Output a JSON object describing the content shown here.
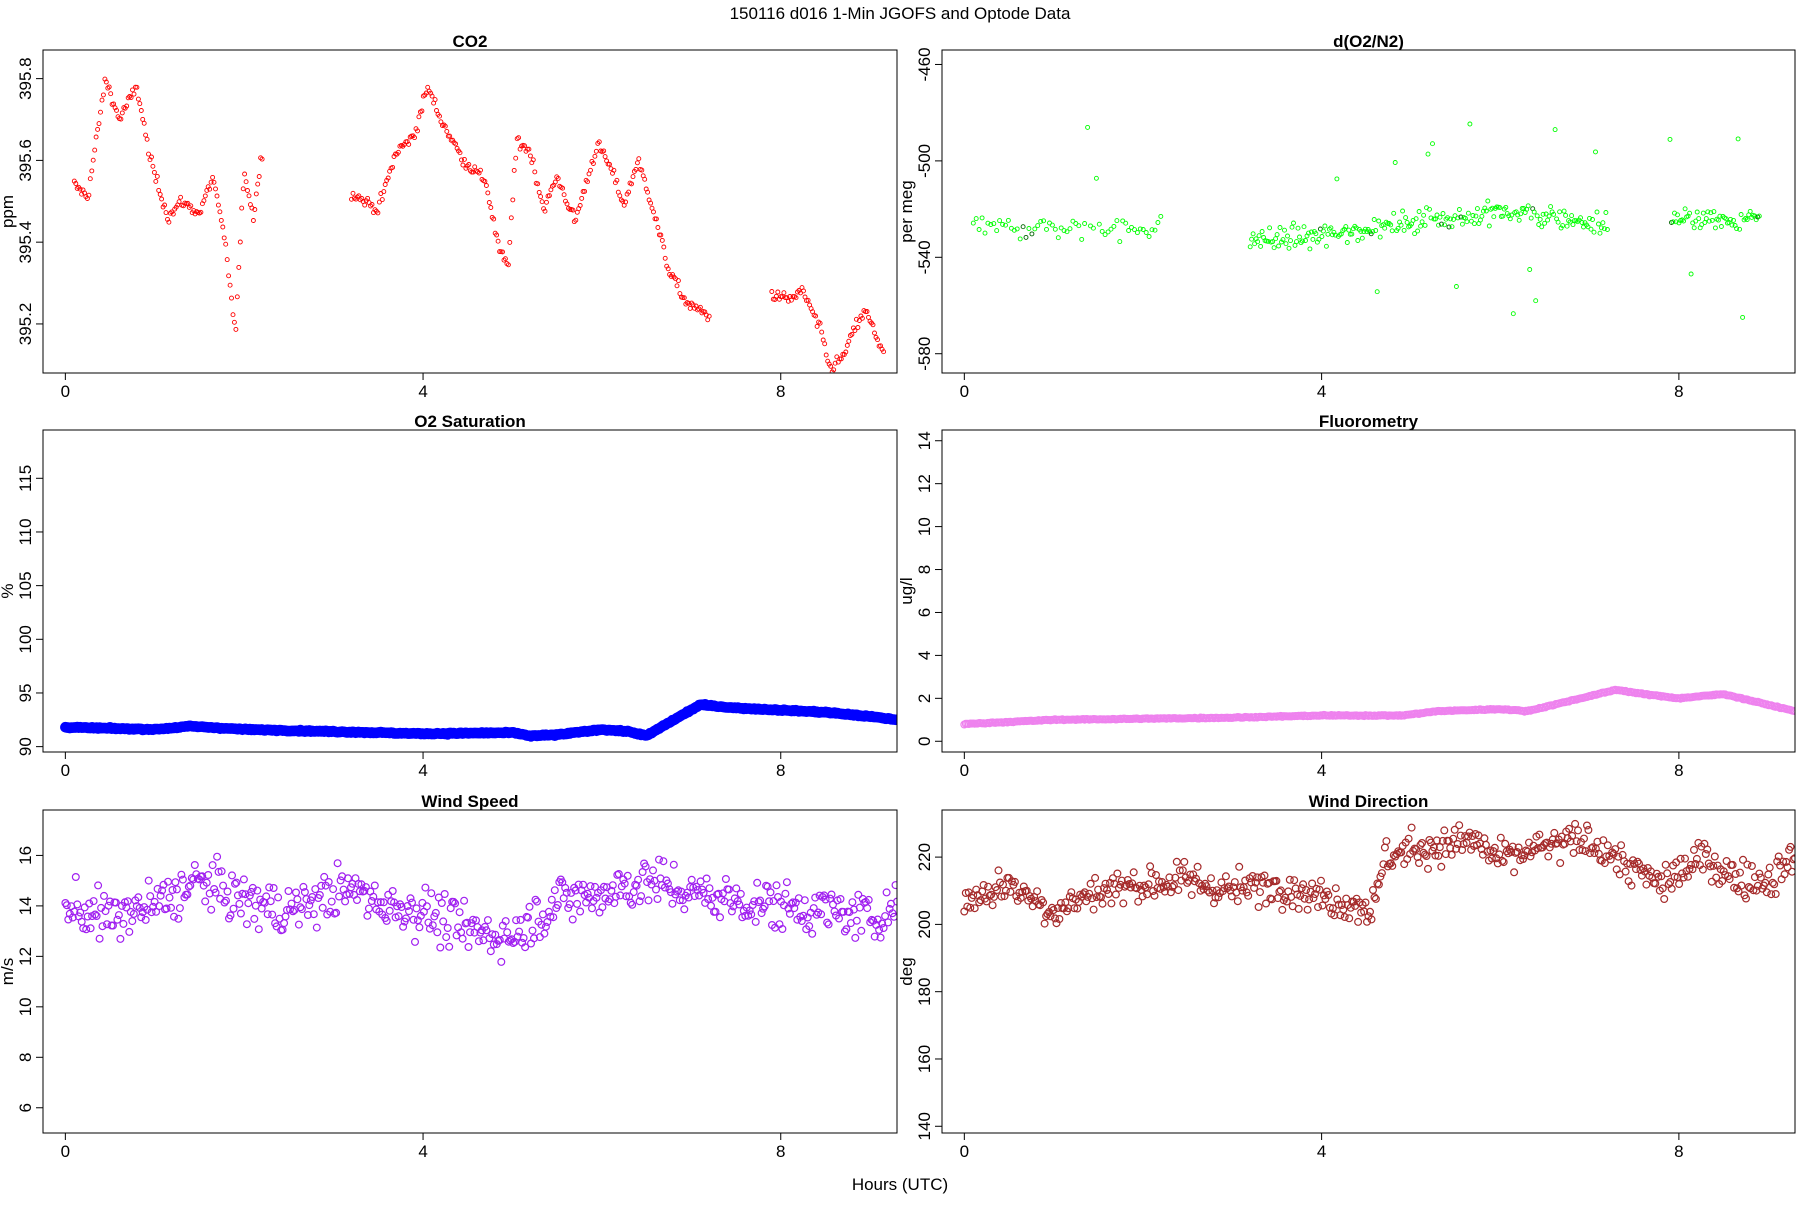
{
  "figure": {
    "title": "150116   d016   1-Min  JGOFS and Optode Data",
    "xlabel": "Hours (UTC)"
  },
  "chart_data": [
    {
      "id": "co2",
      "type": "scatter",
      "title": "CO2",
      "ylabel": "ppm",
      "xlim": [
        -0.25,
        9.3
      ],
      "ylim": [
        395.08,
        395.87
      ],
      "xticks": [
        0,
        4,
        8
      ],
      "yticks": [
        395.2,
        395.4,
        395.6,
        395.8
      ],
      "color": "#ff0000",
      "marker_size": "small",
      "segments": [
        {
          "x_range": [
            0.1,
            2.2
          ],
          "n": 130,
          "anchors": [
            [
              0.1,
              395.54
            ],
            [
              0.25,
              395.51
            ],
            [
              0.45,
              395.8
            ],
            [
              0.6,
              395.7
            ],
            [
              0.8,
              395.78
            ],
            [
              0.95,
              395.6
            ],
            [
              1.15,
              395.46
            ],
            [
              1.3,
              395.5
            ],
            [
              1.5,
              395.47
            ],
            [
              1.65,
              395.56
            ],
            [
              1.8,
              395.38
            ],
            [
              1.9,
              395.17
            ],
            [
              2.0,
              395.58
            ],
            [
              2.1,
              395.46
            ],
            [
              2.2,
              395.62
            ]
          ]
        },
        {
          "x_range": [
            3.2,
            7.2
          ],
          "n": 245,
          "anchors": [
            [
              3.2,
              395.52
            ],
            [
              3.5,
              395.48
            ],
            [
              3.7,
              395.62
            ],
            [
              3.9,
              395.66
            ],
            [
              4.05,
              395.78
            ],
            [
              4.2,
              395.7
            ],
            [
              4.45,
              395.6
            ],
            [
              4.7,
              395.55
            ],
            [
              4.85,
              395.38
            ],
            [
              4.95,
              395.34
            ],
            [
              5.05,
              395.65
            ],
            [
              5.2,
              395.62
            ],
            [
              5.35,
              395.48
            ],
            [
              5.5,
              395.56
            ],
            [
              5.7,
              395.45
            ],
            [
              5.95,
              395.64
            ],
            [
              6.1,
              395.58
            ],
            [
              6.25,
              395.49
            ],
            [
              6.4,
              395.6
            ],
            [
              6.55,
              395.5
            ],
            [
              6.75,
              395.33
            ],
            [
              6.95,
              395.25
            ],
            [
              7.2,
              395.22
            ]
          ]
        },
        {
          "x_range": [
            7.9,
            9.15
          ],
          "n": 75,
          "anchors": [
            [
              7.9,
              395.27
            ],
            [
              8.1,
              395.26
            ],
            [
              8.25,
              395.28
            ],
            [
              8.45,
              395.18
            ],
            [
              8.55,
              395.09
            ],
            [
              8.7,
              395.12
            ],
            [
              8.85,
              395.2
            ],
            [
              8.95,
              395.23
            ],
            [
              9.15,
              395.13
            ]
          ]
        }
      ]
    },
    {
      "id": "o2n2",
      "type": "scatter",
      "title": "d(O2/N2)",
      "ylabel": "per meg",
      "xlim": [
        -0.25,
        9.3
      ],
      "ylim": [
        -588,
        -454
      ],
      "xticks": [
        0,
        4,
        8
      ],
      "yticks": [
        -580,
        -540,
        -500,
        -460
      ],
      "color": "#00ff00",
      "marker_size": "small",
      "segments": [
        {
          "x_range": [
            0.1,
            2.2
          ],
          "n": 65,
          "anchors": [
            [
              0.1,
              -528
            ],
            [
              1.0,
              -528
            ],
            [
              2.2,
              -528
            ]
          ]
        },
        {
          "x_range": [
            3.2,
            7.2
          ],
          "n": 240,
          "anchors": [
            [
              3.2,
              -533
            ],
            [
              4.0,
              -531
            ],
            [
              5.0,
              -525
            ],
            [
              6.0,
              -521
            ],
            [
              7.2,
              -526
            ]
          ]
        },
        {
          "x_range": [
            7.9,
            8.9
          ],
          "n": 60,
          "anchors": [
            [
              7.9,
              -524
            ],
            [
              8.9,
              -524
            ]
          ]
        }
      ]
    },
    {
      "id": "o2sat",
      "type": "scatter",
      "title": "O2 Saturation",
      "ylabel": "%",
      "xlim": [
        -0.25,
        9.3
      ],
      "ylim": [
        89.5,
        119.5
      ],
      "xticks": [
        0,
        4,
        8
      ],
      "yticks": [
        90,
        95,
        100,
        105,
        110,
        115
      ],
      "color": "#0000ff",
      "marker_size": "large",
      "segments": [
        {
          "x_range": [
            0.0,
            9.3
          ],
          "n": 560,
          "anchors": [
            [
              0,
              91.8
            ],
            [
              1.0,
              91.6
            ],
            [
              1.4,
              91.9
            ],
            [
              2.0,
              91.6
            ],
            [
              3.0,
              91.4
            ],
            [
              4.0,
              91.2
            ],
            [
              5.0,
              91.3
            ],
            [
              5.2,
              91.0
            ],
            [
              5.5,
              91.1
            ],
            [
              6.0,
              91.6
            ],
            [
              6.3,
              91.4
            ],
            [
              6.5,
              91.0
            ],
            [
              6.7,
              92.0
            ],
            [
              7.1,
              93.9
            ],
            [
              7.5,
              93.6
            ],
            [
              8.0,
              93.4
            ],
            [
              8.5,
              93.2
            ],
            [
              9.0,
              92.8
            ],
            [
              9.3,
              92.5
            ]
          ]
        }
      ]
    },
    {
      "id": "fluor",
      "type": "scatter",
      "title": "Fluorometry",
      "ylabel": "ug/l",
      "xlim": [
        -0.25,
        9.3
      ],
      "ylim": [
        -0.5,
        14.5
      ],
      "xticks": [
        0,
        4,
        8
      ],
      "yticks": [
        0,
        2,
        4,
        6,
        8,
        10,
        12,
        14
      ],
      "color": "#ee82ee",
      "marker_size": "medium",
      "segments": [
        {
          "x_range": [
            0.0,
            9.3
          ],
          "n": 560,
          "anchors": [
            [
              0,
              0.8
            ],
            [
              1.0,
              1.0
            ],
            [
              3.0,
              1.1
            ],
            [
              4.0,
              1.2
            ],
            [
              4.9,
              1.2
            ],
            [
              5.3,
              1.4
            ],
            [
              6.0,
              1.5
            ],
            [
              6.3,
              1.4
            ],
            [
              6.8,
              1.9
            ],
            [
              7.3,
              2.4
            ],
            [
              7.6,
              2.2
            ],
            [
              8.0,
              2.0
            ],
            [
              8.5,
              2.2
            ],
            [
              8.8,
              1.9
            ],
            [
              9.3,
              1.4
            ]
          ]
        }
      ]
    },
    {
      "id": "wspd",
      "type": "scatter",
      "title": "Wind Speed",
      "ylabel": "m/s",
      "xlim": [
        -0.25,
        9.3
      ],
      "ylim": [
        5.0,
        17.8
      ],
      "xticks": [
        0,
        4,
        8
      ],
      "yticks": [
        6,
        8,
        10,
        12,
        14,
        16
      ],
      "color": "#a020f0",
      "marker_size": "medium",
      "segments": [
        {
          "x_range": [
            0.0,
            9.3
          ],
          "n": 560,
          "anchors": [
            [
              0,
              14.0
            ],
            [
              0.5,
              13.5
            ],
            [
              1.0,
              14.0
            ],
            [
              1.5,
              15.0
            ],
            [
              2.0,
              14.2
            ],
            [
              2.5,
              13.8
            ],
            [
              3.0,
              14.5
            ],
            [
              3.3,
              14.6
            ],
            [
              3.6,
              14.0
            ],
            [
              4.0,
              13.8
            ],
            [
              4.5,
              13.0
            ],
            [
              5.0,
              12.8
            ],
            [
              5.5,
              14.2
            ],
            [
              6.0,
              14.5
            ],
            [
              6.5,
              15.0
            ],
            [
              7.0,
              14.5
            ],
            [
              7.5,
              14.2
            ],
            [
              8.0,
              14.0
            ],
            [
              8.5,
              13.8
            ],
            [
              9.0,
              13.5
            ],
            [
              9.3,
              14.0
            ]
          ]
        }
      ]
    },
    {
      "id": "wdir",
      "type": "scatter",
      "title": "Wind Direction",
      "ylabel": "deg",
      "xlim": [
        -0.25,
        9.3
      ],
      "ylim": [
        138,
        234
      ],
      "xticks": [
        0,
        4,
        8
      ],
      "yticks": [
        140,
        160,
        180,
        200,
        220
      ],
      "color": "#a52a2a",
      "marker_size": "medium",
      "segments": [
        {
          "x_range": [
            0.0,
            9.3
          ],
          "n": 560,
          "anchors": [
            [
              0,
              207
            ],
            [
              0.5,
              212
            ],
            [
              1.0,
              204
            ],
            [
              1.5,
              210
            ],
            [
              2.0,
              212
            ],
            [
              2.5,
              213
            ],
            [
              3.0,
              210
            ],
            [
              3.5,
              212
            ],
            [
              4.0,
              208
            ],
            [
              4.6,
              205
            ],
            [
              4.7,
              220
            ],
            [
              5.0,
              222
            ],
            [
              5.7,
              225
            ],
            [
              6.0,
              219
            ],
            [
              6.5,
              223
            ],
            [
              7.0,
              225
            ],
            [
              7.5,
              216
            ],
            [
              7.8,
              212
            ],
            [
              8.3,
              220
            ],
            [
              8.6,
              214
            ],
            [
              9.0,
              213
            ],
            [
              9.3,
              220
            ]
          ]
        }
      ]
    }
  ]
}
